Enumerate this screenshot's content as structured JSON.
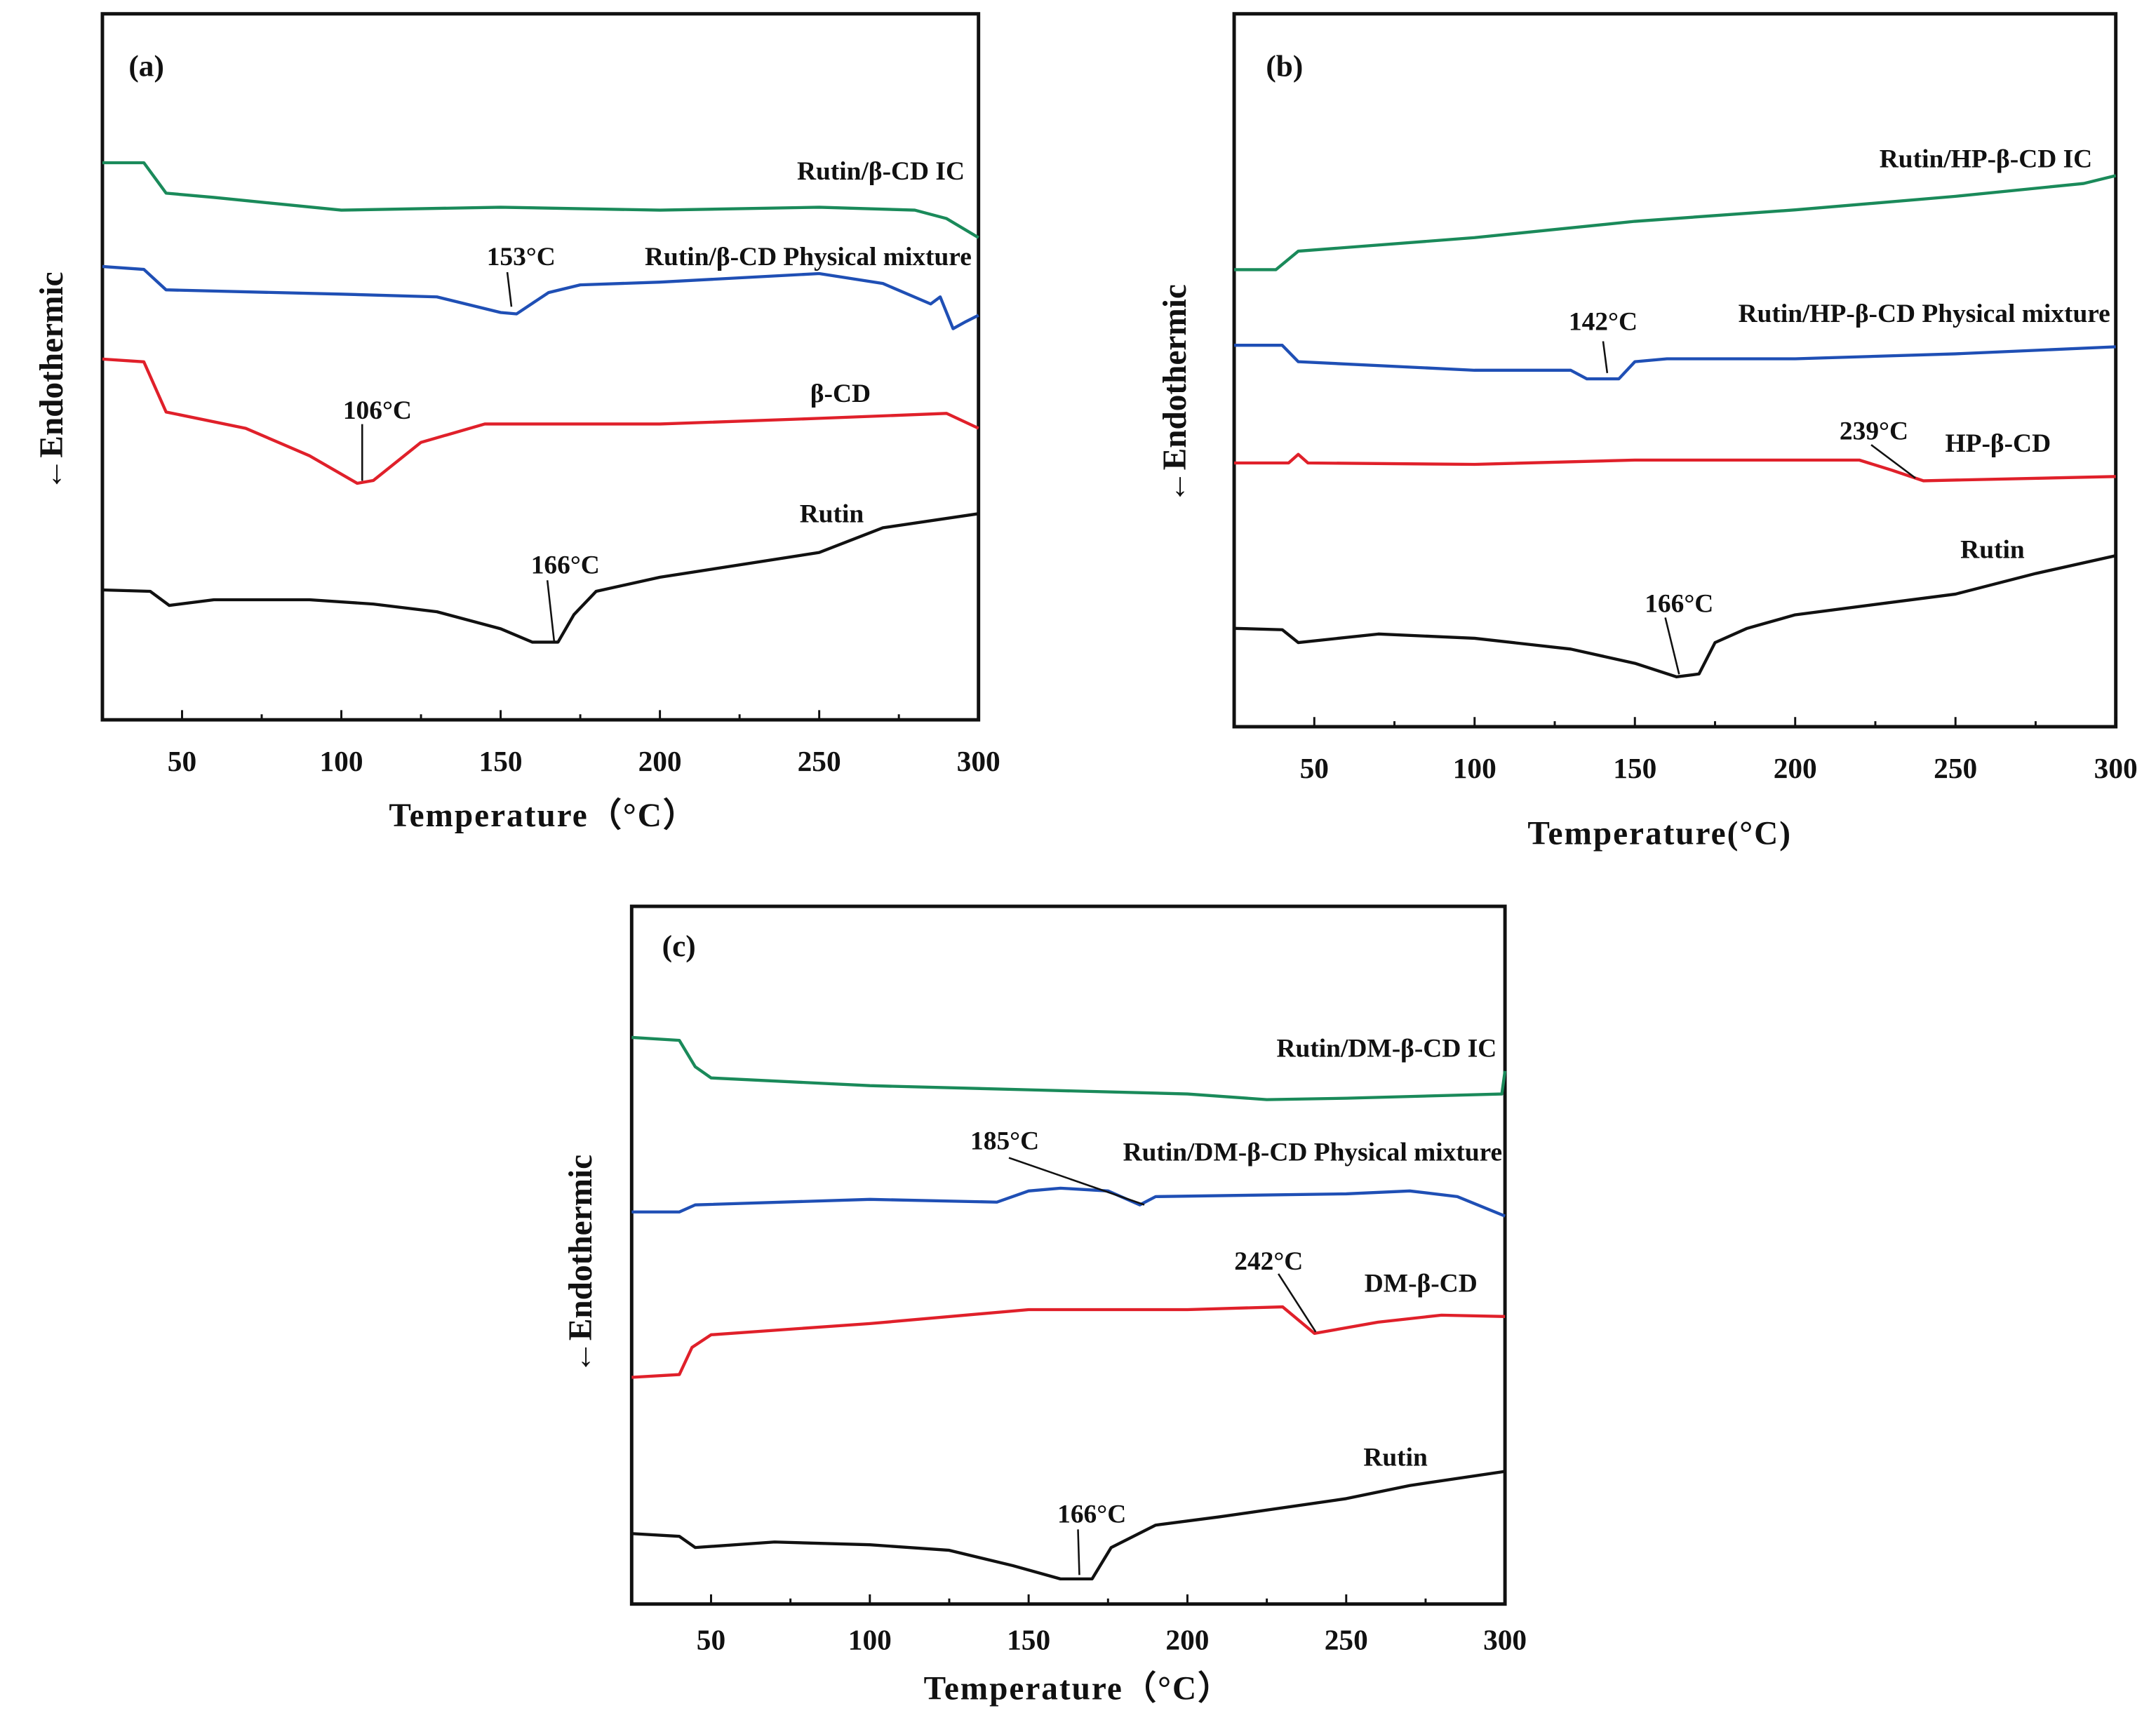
{
  "chart_data": [
    {
      "type": "line",
      "panel_label": "(a)",
      "xlabel": "Temperature（°C）",
      "ylabel": "←Endothermic",
      "xlim": [
        25,
        300
      ],
      "ylim": [
        0,
        100
      ],
      "xticks": [
        50,
        100,
        150,
        200,
        250,
        300
      ],
      "grid": false,
      "series": [
        {
          "name": "Rutin/β-CD IC",
          "color": "#1a8a5a",
          "x": [
            25,
            38,
            45,
            60,
            100,
            150,
            200,
            250,
            280,
            290,
            300
          ],
          "y": [
            78.9,
            78.9,
            74.6,
            74,
            72.2,
            72.6,
            72.2,
            72.6,
            72.2,
            71,
            68.3
          ]
        },
        {
          "name": "Rutin/β-CD Physical mixture",
          "color": "#1f4fb5",
          "x": [
            25,
            38,
            45,
            100,
            130,
            150,
            155,
            165,
            175,
            200,
            250,
            270,
            285,
            288,
            292,
            296,
            300
          ],
          "y": [
            64.2,
            63.8,
            60.9,
            60.3,
            59.9,
            57.7,
            57.5,
            60.5,
            61.6,
            62,
            63.2,
            61.8,
            58.9,
            59.9,
            55.4,
            56.4,
            57.3
          ]
        },
        {
          "name": "β-CD",
          "color": "#e0202a",
          "x": [
            25,
            38,
            45,
            70,
            90,
            105,
            110,
            125,
            145,
            200,
            250,
            290,
            300
          ],
          "y": [
            51.1,
            50.7,
            43.6,
            41.3,
            37.4,
            33.5,
            33.9,
            39.3,
            41.9,
            41.9,
            42.7,
            43.4,
            41.3
          ]
        },
        {
          "name": "Rutin",
          "color": "#111111",
          "x": [
            25,
            40,
            46,
            60,
            90,
            110,
            130,
            150,
            160,
            168,
            173,
            180,
            200,
            250,
            270,
            300
          ],
          "y": [
            18.4,
            18.2,
            16.2,
            17,
            17,
            16.4,
            15.3,
            12.9,
            11,
            11,
            14.9,
            18.2,
            20.2,
            23.7,
            27.2,
            29.2
          ]
        }
      ],
      "annotations": [
        {
          "text": "153°C",
          "series": "Rutin/β-CD Physical mixture",
          "x": 153
        },
        {
          "text": "106°C",
          "series": "β-CD",
          "x": 106
        },
        {
          "text": "166°C",
          "series": "Rutin",
          "x": 166
        }
      ]
    },
    {
      "type": "line",
      "panel_label": "(b)",
      "xlabel": "Temperature(°C)",
      "ylabel": "←Endothermic",
      "xlim": [
        25,
        300
      ],
      "ylim": [
        0,
        100
      ],
      "xticks": [
        50,
        100,
        150,
        200,
        250,
        300
      ],
      "grid": false,
      "series": [
        {
          "name": "Rutin/HP-β-CD IC",
          "color": "#1a8a5a",
          "x": [
            25,
            38,
            45,
            100,
            150,
            200,
            250,
            290,
            300
          ],
          "y": [
            64.1,
            64.1,
            66.7,
            68.6,
            70.9,
            72.5,
            74.4,
            76.2,
            77.3
          ]
        },
        {
          "name": "Rutin/HP-β-CD Physical mixture",
          "color": "#1f4fb5",
          "x": [
            25,
            40,
            45,
            100,
            130,
            135,
            145,
            150,
            160,
            200,
            250,
            300
          ],
          "y": [
            53.5,
            53.5,
            51.2,
            50,
            50,
            48.8,
            48.8,
            51.2,
            51.6,
            51.6,
            52.3,
            53.3
          ]
        },
        {
          "name": "HP-β-CD",
          "color": "#e0202a",
          "x": [
            25,
            42,
            45,
            48,
            100,
            150,
            220,
            230,
            240,
            300
          ],
          "y": [
            37,
            37,
            38.2,
            37,
            36.8,
            37.4,
            37.4,
            36,
            34.5,
            35.1
          ]
        },
        {
          "name": "Rutin",
          "color": "#111111",
          "x": [
            25,
            40,
            45,
            70,
            100,
            130,
            150,
            163,
            170,
            175,
            185,
            200,
            250,
            275,
            300
          ],
          "y": [
            13.8,
            13.6,
            11.8,
            13,
            12.4,
            10.9,
            8.9,
            7,
            7.4,
            11.8,
            13.8,
            15.7,
            18.6,
            21.5,
            24
          ]
        }
      ],
      "annotations": [
        {
          "text": "142°C",
          "series": "Rutin/HP-β-CD Physical mixture",
          "x": 142
        },
        {
          "text": "239°C",
          "series": "HP-β-CD",
          "x": 239
        },
        {
          "text": "166°C",
          "series": "Rutin",
          "x": 166
        }
      ]
    },
    {
      "type": "line",
      "panel_label": "(c)",
      "xlabel": "Temperature（°C）",
      "ylabel": "←Endothermic",
      "xlim": [
        25,
        300
      ],
      "ylim": [
        0,
        100
      ],
      "xticks": [
        50,
        100,
        150,
        200,
        250,
        300
      ],
      "grid": false,
      "series": [
        {
          "name": "Rutin/DM-β-CD IC",
          "color": "#1a8a5a",
          "x": [
            25,
            40,
            45,
            50,
            100,
            150,
            200,
            225,
            250,
            299,
            300
          ],
          "y": [
            81.2,
            80.8,
            77,
            75.4,
            74.3,
            73.7,
            73.1,
            72.3,
            72.5,
            73.1,
            76.4
          ]
        },
        {
          "name": "Rutin/DM-β-CD Physical mixture",
          "color": "#1f4fb5",
          "x": [
            25,
            40,
            45,
            100,
            140,
            150,
            160,
            175,
            185,
            190,
            250,
            270,
            285,
            300
          ],
          "y": [
            56.2,
            56.2,
            57.2,
            58,
            57.6,
            59.2,
            59.6,
            59.2,
            57.2,
            58.4,
            58.8,
            59.2,
            58.4,
            55.6
          ]
        },
        {
          "name": "DM-β-CD",
          "color": "#e0202a",
          "x": [
            25,
            40,
            44,
            50,
            100,
            150,
            200,
            230,
            240,
            260,
            280,
            300
          ],
          "y": [
            32.5,
            32.9,
            36.8,
            38.6,
            40.2,
            42.2,
            42.2,
            42.6,
            38.8,
            40.4,
            41.4,
            41.2
          ]
        },
        {
          "name": "Rutin",
          "color": "#111111",
          "x": [
            25,
            40,
            45,
            70,
            100,
            125,
            145,
            160,
            170,
            176,
            190,
            210,
            250,
            270,
            300
          ],
          "y": [
            10.1,
            9.7,
            8.1,
            8.9,
            8.5,
            7.7,
            5.5,
            3.6,
            3.6,
            8.1,
            11.3,
            12.5,
            15.1,
            17,
            19
          ]
        }
      ],
      "annotations": [
        {
          "text": "185°C",
          "series": "Rutin/DM-β-CD Physical mixture",
          "x": 185
        },
        {
          "text": "242°C",
          "series": "DM-β-CD",
          "x": 242
        },
        {
          "text": "166°C",
          "series": "Rutin",
          "x": 166
        }
      ]
    }
  ]
}
